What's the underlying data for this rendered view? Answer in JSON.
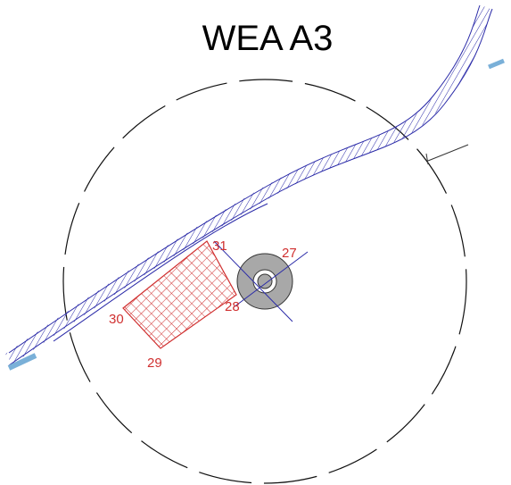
{
  "title": "WEA A3",
  "points": [
    {
      "label": "27"
    },
    {
      "label": "28"
    },
    {
      "label": "29"
    },
    {
      "label": "30"
    },
    {
      "label": "31"
    }
  ]
}
